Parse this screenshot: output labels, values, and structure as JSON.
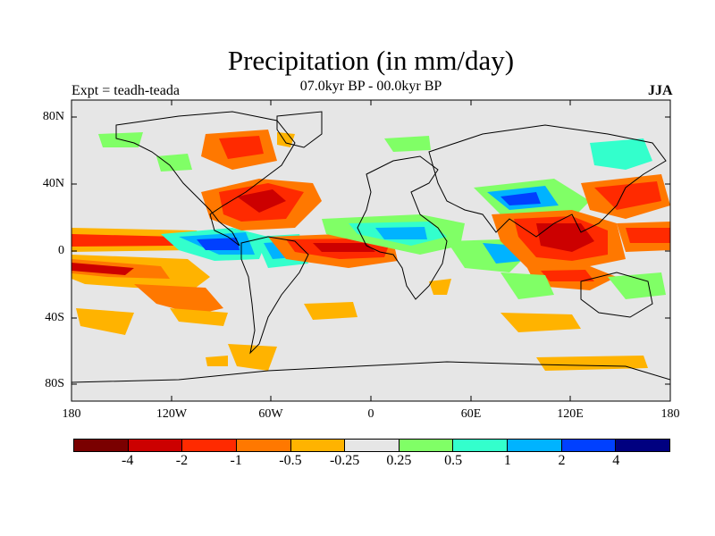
{
  "title": "Precipitation (in mm/day)",
  "subtitle": "07.0kyr BP - 00.0kyr BP",
  "experiment_label": "Expt = teadh-teada",
  "season_label": "JJA",
  "lat_labels": [
    "80N",
    "40N",
    "0",
    "40S",
    "80S"
  ],
  "lon_labels": [
    "180",
    "120W",
    "60W",
    "0",
    "60E",
    "120E",
    "180"
  ],
  "colorbar": {
    "colors": [
      "#7a0000",
      "#cc0000",
      "#ff2a00",
      "#ff7800",
      "#ffb300",
      "#e6e6e6",
      "#80ff66",
      "#33ffcc",
      "#00b3ff",
      "#0040ff",
      "#000080"
    ],
    "labels": [
      "-4",
      "-2",
      "-1",
      "-0.5",
      "-0.25",
      "0.25",
      "0.5",
      "1",
      "2",
      "4"
    ]
  },
  "colors": {
    "background": "#e6e6e6",
    "dark_red": "#cc0000",
    "red": "#ff2a00",
    "orange": "#ff7800",
    "yellow": "#ffb300",
    "green": "#80ff66",
    "teal": "#33ffcc",
    "cyan": "#00b3ff",
    "blue": "#0040ff"
  }
}
